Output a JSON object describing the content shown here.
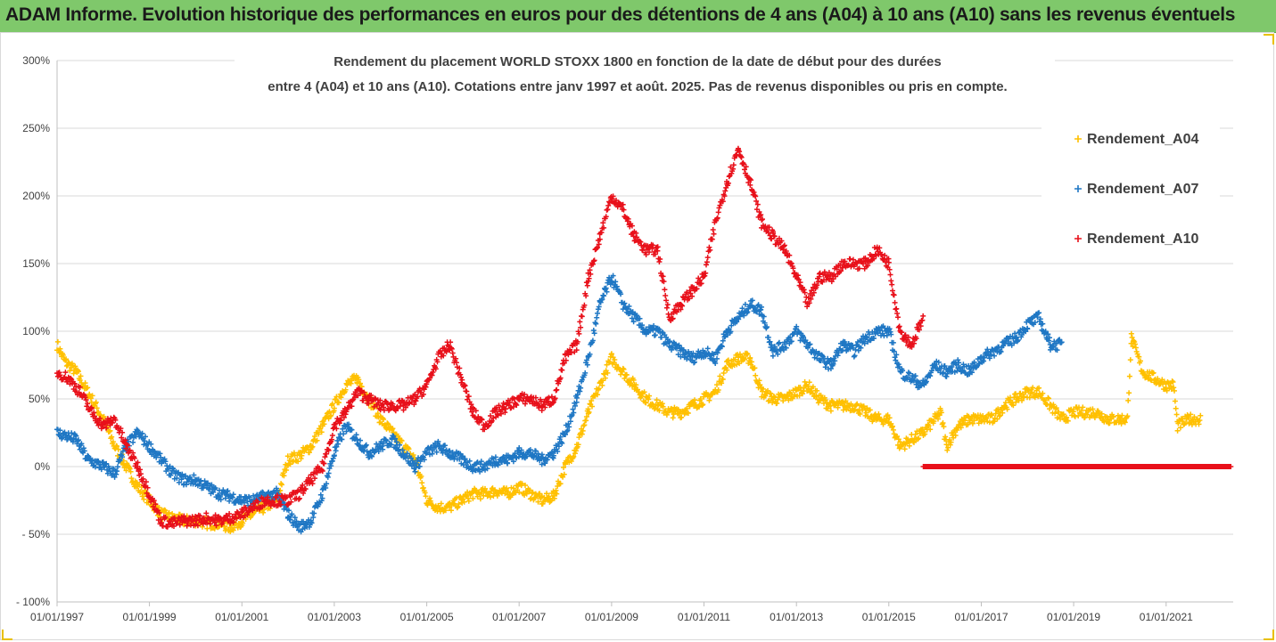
{
  "banner": {
    "title": "ADAM Informe. Evolution historique des performances en euros pour des détentions de 4 ans (A04) à 10 ans (A10) sans les revenus éventuels",
    "color": "#7fc86b"
  },
  "chart_data": {
    "type": "scatter",
    "title_line1": "Rendement du placement WORLD STOXX 1800 en fonction de la date de début pour des durées",
    "title_line2": "entre 4 (A04) et 10 ans (A10). Cotations entre janv 1997 et août. 2025. Pas de revenus disponibles ou pris en compte.",
    "xlabel": "",
    "ylabel": "",
    "x_range": [
      "1997-01-01",
      "2022-06-15"
    ],
    "ylim": [
      -100,
      300
    ],
    "y_unit": "%",
    "y_ticks": [
      "300%",
      "250%",
      "200%",
      "150%",
      "100%",
      "50%",
      "0%",
      "- 50%",
      "- 100%"
    ],
    "x_ticks": [
      "01/01/1997",
      "01/01/1999",
      "01/01/2001",
      "01/01/2003",
      "01/01/2005",
      "01/01/2007",
      "01/01/2009",
      "01/01/2011",
      "01/01/2013",
      "01/01/2015",
      "01/01/2017",
      "01/01/2019",
      "01/01/2021"
    ],
    "grid": "horizontal",
    "legend_position": "top-right",
    "marker": "+",
    "series": [
      {
        "name": "Rendement_A04",
        "color": "#ffc000",
        "x": [
          "1997-01-01",
          "1997-03-01",
          "1997-06-01",
          "1997-09-01",
          "1998-01-01",
          "1998-04-01",
          "1998-07-01",
          "1998-10-01",
          "1999-01-01",
          "1999-04-01",
          "1999-07-01",
          "1999-10-01",
          "2000-01-01",
          "2000-04-01",
          "2000-07-01",
          "2000-10-01",
          "2001-01-01",
          "2001-04-01",
          "2001-07-01",
          "2001-10-01",
          "2002-01-01",
          "2002-04-01",
          "2002-07-01",
          "2002-10-01",
          "2003-01-01",
          "2003-04-01",
          "2003-07-01",
          "2003-10-01",
          "2004-01-01",
          "2004-04-01",
          "2004-07-01",
          "2004-10-01",
          "2005-01-01",
          "2005-04-01",
          "2005-07-01",
          "2005-10-01",
          "2006-01-01",
          "2006-04-01",
          "2006-07-01",
          "2006-10-01",
          "2007-01-01",
          "2007-04-01",
          "2007-07-01",
          "2007-10-01",
          "2008-01-01",
          "2008-04-01",
          "2008-07-01",
          "2008-10-01",
          "2009-01-01",
          "2009-04-01",
          "2009-07-01",
          "2009-10-01",
          "2010-01-01",
          "2010-04-01",
          "2010-07-01",
          "2010-10-01",
          "2011-01-01",
          "2011-04-01",
          "2011-07-01",
          "2011-10-01",
          "2012-01-01",
          "2012-04-01",
          "2012-07-01",
          "2012-10-01",
          "2013-01-01",
          "2013-04-01",
          "2013-07-01",
          "2013-10-01",
          "2014-01-01",
          "2014-04-01",
          "2014-07-01",
          "2014-10-01",
          "2015-01-01",
          "2015-04-01",
          "2015-07-01",
          "2015-10-01",
          "2016-01-01",
          "2016-02-15",
          "2016-04-01",
          "2016-07-01",
          "2016-10-01",
          "2017-01-01",
          "2017-04-01",
          "2017-07-01",
          "2017-10-01",
          "2018-01-01",
          "2018-04-01",
          "2018-07-01",
          "2018-10-01",
          "2019-01-01",
          "2019-04-01",
          "2019-07-01",
          "2019-10-01",
          "2020-01-01",
          "2020-03-01",
          "2020-04-01",
          "2020-07-01",
          "2020-10-01",
          "2021-01-01",
          "2021-03-01",
          "2021-04-01",
          "2021-07-01",
          "2021-10-01"
        ],
        "y": [
          90,
          78,
          70,
          55,
          35,
          15,
          0,
          -15,
          -25,
          -35,
          -38,
          -40,
          -40,
          -42,
          -42,
          -45,
          -40,
          -35,
          -30,
          -25,
          5,
          8,
          15,
          30,
          45,
          60,
          65,
          50,
          35,
          25,
          15,
          5,
          -25,
          -30,
          -30,
          -25,
          -20,
          -20,
          -18,
          -20,
          -15,
          -20,
          -25,
          -22,
          0,
          15,
          40,
          60,
          80,
          70,
          60,
          50,
          45,
          40,
          40,
          45,
          50,
          55,
          75,
          80,
          80,
          55,
          50,
          50,
          55,
          60,
          50,
          45,
          45,
          45,
          40,
          35,
          35,
          15,
          20,
          25,
          35,
          40,
          15,
          30,
          35,
          35,
          35,
          45,
          50,
          55,
          55,
          45,
          35,
          40,
          40,
          40,
          35,
          35,
          35,
          95,
          70,
          65,
          60,
          60,
          30,
          35,
          35
        ]
      },
      {
        "name": "Rendement_A07",
        "color": "#1f77c4",
        "x": [
          "1997-01-01",
          "1997-06-01",
          "1997-09-01",
          "1998-01-01",
          "1998-04-01",
          "1998-07-01",
          "1998-10-01",
          "1999-01-01",
          "1999-04-01",
          "1999-07-01",
          "1999-10-01",
          "2000-01-01",
          "2000-04-01",
          "2000-07-01",
          "2000-10-01",
          "2001-01-01",
          "2001-04-01",
          "2001-07-01",
          "2001-10-01",
          "2002-01-01",
          "2002-04-01",
          "2002-07-01",
          "2002-10-01",
          "2003-01-01",
          "2003-04-01",
          "2003-07-01",
          "2003-10-01",
          "2004-01-01",
          "2004-04-01",
          "2004-07-01",
          "2004-10-01",
          "2005-01-01",
          "2005-04-01",
          "2005-07-01",
          "2005-10-01",
          "2006-01-01",
          "2006-04-01",
          "2006-07-01",
          "2006-10-01",
          "2007-01-01",
          "2007-04-01",
          "2007-07-01",
          "2007-10-01",
          "2008-01-01",
          "2008-04-01",
          "2008-07-01",
          "2008-10-01",
          "2009-01-01",
          "2009-04-01",
          "2009-07-01",
          "2009-10-01",
          "2010-01-01",
          "2010-04-01",
          "2010-07-01",
          "2010-10-01",
          "2011-01-01",
          "2011-04-01",
          "2011-07-01",
          "2011-10-01",
          "2012-01-01",
          "2012-04-01",
          "2012-07-01",
          "2012-10-01",
          "2013-01-01",
          "2013-04-01",
          "2013-07-01",
          "2013-10-01",
          "2014-01-01",
          "2014-04-01",
          "2014-07-01",
          "2014-10-01",
          "2015-01-01",
          "2015-04-01",
          "2015-07-01",
          "2015-10-01",
          "2016-01-01",
          "2016-04-01",
          "2016-07-01",
          "2016-10-01",
          "2017-01-01",
          "2017-04-01",
          "2017-07-01",
          "2017-10-01",
          "2018-01-01",
          "2018-04-01",
          "2018-07-01",
          "2018-10-01"
        ],
        "y": [
          25,
          20,
          5,
          0,
          -5,
          15,
          25,
          15,
          5,
          -5,
          -10,
          -10,
          -15,
          -20,
          -22,
          -25,
          -25,
          -22,
          -20,
          -35,
          -45,
          -40,
          -20,
          10,
          30,
          20,
          10,
          15,
          20,
          10,
          0,
          10,
          15,
          10,
          5,
          0,
          0,
          5,
          5,
          10,
          10,
          5,
          10,
          25,
          50,
          80,
          120,
          140,
          120,
          110,
          100,
          100,
          90,
          85,
          80,
          85,
          80,
          100,
          110,
          120,
          115,
          85,
          90,
          100,
          90,
          80,
          75,
          90,
          85,
          95,
          100,
          100,
          70,
          65,
          60,
          75,
          70,
          75,
          70,
          80,
          85,
          90,
          95,
          105,
          110,
          90,
          90
        ]
      },
      {
        "name": "Rendement_A10",
        "color": "#e8101a",
        "x": [
          "1997-01-01",
          "1997-04-01",
          "1997-07-01",
          "1997-10-01",
          "1998-01-01",
          "1998-04-01",
          "1998-07-01",
          "1998-10-01",
          "1999-01-01",
          "1999-04-01",
          "1999-07-01",
          "1999-10-01",
          "2000-01-01",
          "2000-04-01",
          "2000-07-01",
          "2000-10-01",
          "2001-01-01",
          "2001-04-01",
          "2001-07-01",
          "2001-10-01",
          "2002-01-01",
          "2002-04-01",
          "2002-07-01",
          "2002-10-01",
          "2003-01-01",
          "2003-04-01",
          "2003-07-01",
          "2003-10-01",
          "2004-01-01",
          "2004-04-01",
          "2004-07-01",
          "2004-10-01",
          "2005-01-01",
          "2005-04-01",
          "2005-07-01",
          "2005-10-01",
          "2006-01-01",
          "2006-04-01",
          "2006-07-01",
          "2006-10-01",
          "2007-01-01",
          "2007-04-01",
          "2007-07-01",
          "2007-10-01",
          "2008-01-01",
          "2008-04-01",
          "2008-07-01",
          "2008-10-01",
          "2009-01-01",
          "2009-04-01",
          "2009-07-01",
          "2009-10-01",
          "2010-01-01",
          "2010-04-01",
          "2010-07-01",
          "2010-10-01",
          "2011-01-01",
          "2011-04-01",
          "2011-07-01",
          "2011-10-01",
          "2012-01-01",
          "2012-04-01",
          "2012-07-01",
          "2012-10-01",
          "2013-01-01",
          "2013-04-01",
          "2013-07-01",
          "2013-10-01",
          "2014-01-01",
          "2014-04-01",
          "2014-07-01",
          "2014-10-01",
          "2015-01-01",
          "2015-04-01",
          "2015-07-01",
          "2015-10-01"
        ],
        "y": [
          70,
          65,
          55,
          40,
          30,
          35,
          15,
          0,
          -20,
          -40,
          -42,
          -40,
          -40,
          -38,
          -40,
          -38,
          -35,
          -30,
          -25,
          -25,
          -25,
          -20,
          -10,
          0,
          30,
          40,
          55,
          50,
          45,
          45,
          45,
          50,
          60,
          80,
          90,
          65,
          40,
          30,
          40,
          45,
          50,
          50,
          45,
          50,
          80,
          90,
          140,
          170,
          200,
          190,
          170,
          160,
          160,
          110,
          120,
          130,
          140,
          180,
          210,
          235,
          210,
          180,
          170,
          160,
          140,
          120,
          140,
          140,
          150,
          150,
          150,
          160,
          150,
          100,
          90,
          110
        ]
      },
      {
        "name": "",
        "color": "#e8101a",
        "x": [
          "2015-10-01",
          "2022-06-01"
        ],
        "y": [
          0,
          0
        ]
      }
    ]
  }
}
